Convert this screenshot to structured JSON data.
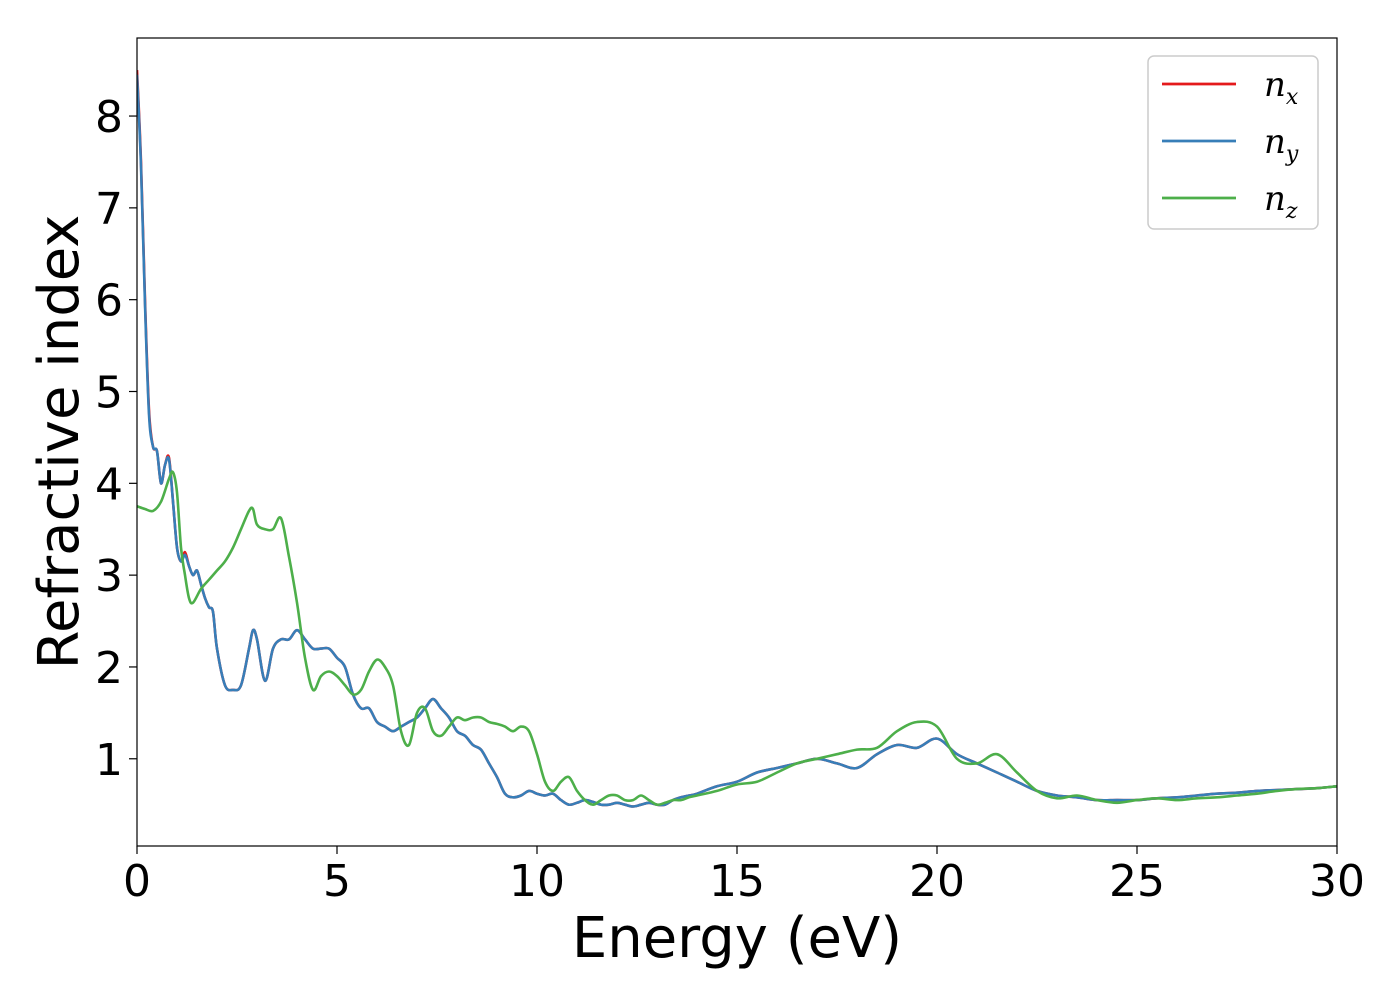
{
  "chart_data": {
    "type": "line",
    "xlabel": "Energy (eV)",
    "ylabel": "Refractive index",
    "xlim": [
      0,
      30
    ],
    "ylim": [
      0.05,
      8.85
    ],
    "xticks": [
      0,
      5,
      10,
      15,
      20,
      25,
      30
    ],
    "yticks": [
      1,
      2,
      3,
      4,
      5,
      6,
      7,
      8
    ],
    "grid": false,
    "legend_position": "top-right",
    "series": [
      {
        "name": "n_x",
        "label_base": "n",
        "label_sub": "x",
        "color": "#e41a1c",
        "x": [
          0,
          0.1,
          0.2,
          0.3,
          0.4,
          0.5,
          0.6,
          0.7,
          0.8,
          0.9,
          1.0,
          1.1,
          1.2,
          1.3,
          1.4,
          1.5,
          1.6,
          1.7,
          1.8,
          1.9,
          2.0,
          2.2,
          2.4,
          2.6,
          2.8,
          2.9,
          3.0,
          3.2,
          3.4,
          3.6,
          3.8,
          4.0,
          4.2,
          4.4,
          4.6,
          4.8,
          5.0,
          5.2,
          5.4,
          5.6,
          5.8,
          6.0,
          6.2,
          6.4,
          6.6,
          6.8,
          7.0,
          7.2,
          7.4,
          7.6,
          7.8,
          8.0,
          8.2,
          8.4,
          8.6,
          8.8,
          9.0,
          9.2,
          9.4,
          9.6,
          9.8,
          10.0,
          10.2,
          10.4,
          10.6,
          10.8,
          11.0,
          11.2,
          11.4,
          11.6,
          11.8,
          12.0,
          12.2,
          12.4,
          12.6,
          12.8,
          13.0,
          13.2,
          13.4,
          13.6,
          13.8,
          14.0,
          14.5,
          15.0,
          15.5,
          16.0,
          16.5,
          17.0,
          17.5,
          18.0,
          18.5,
          19.0,
          19.5,
          20.0,
          20.5,
          21.0,
          21.5,
          22.0,
          22.5,
          23.0,
          23.5,
          24.0,
          24.5,
          25.0,
          25.5,
          26.0,
          26.5,
          27.0,
          27.5,
          28.0,
          28.5,
          29.0,
          29.5,
          30.0
        ],
        "values": [
          8.5,
          7.5,
          6.0,
          4.8,
          4.4,
          4.35,
          4.0,
          4.2,
          4.28,
          3.8,
          3.3,
          3.15,
          3.25,
          3.1,
          3.0,
          3.05,
          2.9,
          2.75,
          2.65,
          2.6,
          2.2,
          1.8,
          1.75,
          1.8,
          2.2,
          2.4,
          2.3,
          1.85,
          2.2,
          2.3,
          2.3,
          2.4,
          2.3,
          2.2,
          2.2,
          2.2,
          2.1,
          2.0,
          1.7,
          1.55,
          1.55,
          1.4,
          1.35,
          1.3,
          1.35,
          1.4,
          1.45,
          1.55,
          1.65,
          1.55,
          1.45,
          1.3,
          1.25,
          1.15,
          1.1,
          0.95,
          0.8,
          0.62,
          0.58,
          0.6,
          0.65,
          0.62,
          0.6,
          0.62,
          0.55,
          0.5,
          0.52,
          0.55,
          0.53,
          0.5,
          0.5,
          0.52,
          0.5,
          0.48,
          0.5,
          0.52,
          0.5,
          0.5,
          0.55,
          0.58,
          0.6,
          0.62,
          0.7,
          0.75,
          0.85,
          0.9,
          0.95,
          1.0,
          0.95,
          0.9,
          1.05,
          1.15,
          1.12,
          1.22,
          1.05,
          0.95,
          0.85,
          0.75,
          0.65,
          0.6,
          0.58,
          0.55,
          0.55,
          0.55,
          0.57,
          0.58,
          0.6,
          0.62,
          0.63,
          0.65,
          0.66,
          0.67,
          0.68,
          0.7
        ]
      },
      {
        "name": "n_y",
        "label_base": "n",
        "label_sub": "y",
        "color": "#377eb8",
        "x": [
          0,
          0.1,
          0.2,
          0.3,
          0.4,
          0.5,
          0.6,
          0.7,
          0.8,
          0.9,
          1.0,
          1.1,
          1.2,
          1.3,
          1.4,
          1.5,
          1.6,
          1.7,
          1.8,
          1.9,
          2.0,
          2.2,
          2.4,
          2.6,
          2.8,
          2.9,
          3.0,
          3.2,
          3.4,
          3.6,
          3.8,
          4.0,
          4.2,
          4.4,
          4.6,
          4.8,
          5.0,
          5.2,
          5.4,
          5.6,
          5.8,
          6.0,
          6.2,
          6.4,
          6.6,
          6.8,
          7.0,
          7.2,
          7.4,
          7.6,
          7.8,
          8.0,
          8.2,
          8.4,
          8.6,
          8.8,
          9.0,
          9.2,
          9.4,
          9.6,
          9.8,
          10.0,
          10.2,
          10.4,
          10.6,
          10.8,
          11.0,
          11.2,
          11.4,
          11.6,
          11.8,
          12.0,
          12.2,
          12.4,
          12.6,
          12.8,
          13.0,
          13.2,
          13.4,
          13.6,
          13.8,
          14.0,
          14.5,
          15.0,
          15.5,
          16.0,
          16.5,
          17.0,
          17.5,
          18.0,
          18.5,
          19.0,
          19.5,
          20.0,
          20.5,
          21.0,
          21.5,
          22.0,
          22.5,
          23.0,
          23.5,
          24.0,
          24.5,
          25.0,
          25.5,
          26.0,
          26.5,
          27.0,
          27.5,
          28.0,
          28.5,
          29.0,
          29.5,
          30.0
        ],
        "values": [
          8.45,
          7.45,
          5.95,
          4.75,
          4.4,
          4.35,
          4.0,
          4.2,
          4.26,
          3.8,
          3.3,
          3.15,
          3.22,
          3.1,
          3.0,
          3.05,
          2.9,
          2.75,
          2.65,
          2.6,
          2.2,
          1.8,
          1.75,
          1.8,
          2.2,
          2.4,
          2.3,
          1.85,
          2.2,
          2.3,
          2.3,
          2.4,
          2.3,
          2.2,
          2.2,
          2.2,
          2.1,
          2.0,
          1.7,
          1.55,
          1.55,
          1.4,
          1.35,
          1.3,
          1.35,
          1.4,
          1.45,
          1.55,
          1.65,
          1.55,
          1.45,
          1.3,
          1.25,
          1.15,
          1.1,
          0.95,
          0.8,
          0.62,
          0.58,
          0.6,
          0.65,
          0.62,
          0.6,
          0.62,
          0.55,
          0.5,
          0.52,
          0.55,
          0.53,
          0.5,
          0.5,
          0.52,
          0.5,
          0.48,
          0.5,
          0.52,
          0.5,
          0.5,
          0.55,
          0.58,
          0.6,
          0.62,
          0.7,
          0.75,
          0.85,
          0.9,
          0.95,
          1.0,
          0.95,
          0.9,
          1.05,
          1.15,
          1.12,
          1.22,
          1.05,
          0.95,
          0.85,
          0.75,
          0.65,
          0.6,
          0.58,
          0.55,
          0.55,
          0.55,
          0.57,
          0.58,
          0.6,
          0.62,
          0.63,
          0.65,
          0.66,
          0.67,
          0.68,
          0.7
        ]
      },
      {
        "name": "n_z",
        "label_base": "n",
        "label_sub": "z",
        "color": "#4daf4a",
        "x": [
          0,
          0.2,
          0.4,
          0.6,
          0.8,
          0.9,
          1.0,
          1.1,
          1.2,
          1.3,
          1.4,
          1.6,
          1.8,
          2.0,
          2.2,
          2.4,
          2.6,
          2.8,
          2.9,
          3.0,
          3.2,
          3.4,
          3.6,
          3.8,
          4.0,
          4.2,
          4.4,
          4.6,
          4.8,
          5.0,
          5.2,
          5.4,
          5.6,
          5.8,
          6.0,
          6.2,
          6.4,
          6.6,
          6.8,
          7.0,
          7.2,
          7.4,
          7.6,
          7.8,
          8.0,
          8.2,
          8.4,
          8.6,
          8.8,
          9.0,
          9.2,
          9.4,
          9.6,
          9.8,
          10.0,
          10.2,
          10.4,
          10.6,
          10.8,
          11.0,
          11.2,
          11.4,
          11.6,
          11.8,
          12.0,
          12.2,
          12.4,
          12.6,
          12.8,
          13.0,
          13.2,
          13.4,
          13.6,
          13.8,
          14.0,
          14.5,
          15.0,
          15.5,
          16.0,
          16.5,
          17.0,
          17.5,
          18.0,
          18.5,
          19.0,
          19.5,
          20.0,
          20.5,
          21.0,
          21.5,
          22.0,
          22.5,
          23.0,
          23.5,
          24.0,
          24.5,
          25.0,
          25.5,
          26.0,
          26.5,
          27.0,
          27.5,
          28.0,
          28.5,
          29.0,
          29.5,
          30.0
        ],
        "values": [
          3.75,
          3.72,
          3.7,
          3.8,
          4.05,
          4.12,
          3.9,
          3.3,
          3.0,
          2.75,
          2.7,
          2.85,
          2.95,
          3.05,
          3.15,
          3.3,
          3.5,
          3.7,
          3.72,
          3.55,
          3.5,
          3.5,
          3.62,
          3.2,
          2.7,
          2.1,
          1.75,
          1.9,
          1.95,
          1.9,
          1.8,
          1.7,
          1.75,
          1.95,
          2.08,
          2.0,
          1.8,
          1.3,
          1.15,
          1.5,
          1.55,
          1.3,
          1.25,
          1.35,
          1.45,
          1.42,
          1.45,
          1.45,
          1.4,
          1.38,
          1.35,
          1.3,
          1.35,
          1.3,
          1.05,
          0.75,
          0.65,
          0.75,
          0.8,
          0.65,
          0.55,
          0.5,
          0.55,
          0.6,
          0.6,
          0.55,
          0.55,
          0.6,
          0.55,
          0.5,
          0.52,
          0.55,
          0.55,
          0.58,
          0.6,
          0.65,
          0.72,
          0.75,
          0.85,
          0.95,
          1.0,
          1.05,
          1.1,
          1.12,
          1.3,
          1.4,
          1.35,
          1.0,
          0.95,
          1.05,
          0.85,
          0.65,
          0.57,
          0.6,
          0.55,
          0.52,
          0.55,
          0.57,
          0.55,
          0.57,
          0.58,
          0.6,
          0.62,
          0.65,
          0.67,
          0.68,
          0.7
        ]
      }
    ]
  }
}
